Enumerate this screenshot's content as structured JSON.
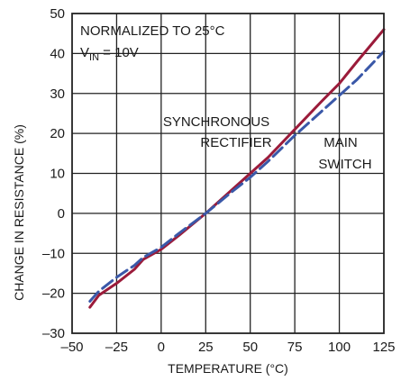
{
  "chart_data": {
    "type": "line",
    "title": "",
    "xlabel": "TEMPERATURE (°C)",
    "ylabel": "CHANGE IN RESISTANCE (%)",
    "xlim": [
      -50,
      125
    ],
    "ylim": [
      -30,
      50
    ],
    "x_ticks": [
      "–50",
      "–25",
      "0",
      "25",
      "50",
      "75",
      "100",
      "125"
    ],
    "x_tick_values": [
      -50,
      -25,
      0,
      25,
      50,
      75,
      100,
      125
    ],
    "y_ticks": [
      "50",
      "40",
      "30",
      "20",
      "10",
      "0",
      "–10",
      "–20",
      "–30"
    ],
    "y_tick_values": [
      50,
      40,
      30,
      20,
      10,
      0,
      -10,
      -20,
      -30
    ],
    "grid": true,
    "annotations": {
      "normalized_line": "NORMALIZED TO 25°C",
      "vin_prefix": "V",
      "vin_subscript": "IN",
      "vin_suffix": " = 10V",
      "sync_line1": "SYNCHRONOUS",
      "sync_line2": "RECTIFIER",
      "main_line1": "MAIN",
      "main_line2": "SWITCH"
    },
    "series": [
      {
        "label": "SYNCHRONOUS RECTIFIER",
        "color": "#9b1b3a",
        "dash": "solid",
        "x": [
          -40,
          -35,
          -25,
          -15,
          -10,
          0,
          10,
          25,
          40,
          50,
          60,
          75,
          90,
          100,
          110,
          125
        ],
        "y": [
          -23.5,
          -20.5,
          -17.5,
          -14,
          -11.5,
          -9,
          -5.5,
          0,
          6,
          10,
          14,
          21,
          28,
          32.5,
          38,
          46
        ]
      },
      {
        "label": "MAIN SWITCH",
        "color": "#3a58a8",
        "dash": "dashed",
        "x": [
          -40,
          -35,
          -25,
          -15,
          -10,
          0,
          10,
          25,
          40,
          50,
          60,
          75,
          90,
          100,
          110,
          125
        ],
        "y": [
          -22,
          -19.5,
          -16,
          -13,
          -11,
          -8.5,
          -5,
          0,
          5.5,
          9,
          13,
          19.5,
          25.5,
          29.5,
          33.5,
          40.5
        ]
      }
    ]
  }
}
